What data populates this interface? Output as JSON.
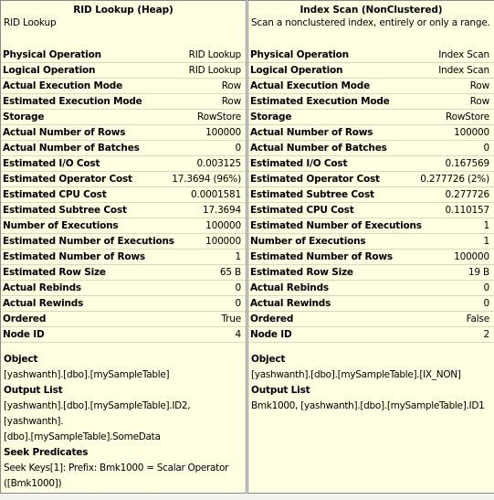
{
  "left": {
    "title": "RID Lookup (Heap)",
    "description": "RID Lookup",
    "properties": [
      {
        "label": "Physical Operation",
        "value": "RID Lookup"
      },
      {
        "label": "Logical Operation",
        "value": "RID Lookup"
      },
      {
        "label": "Actual Execution Mode",
        "value": "Row"
      },
      {
        "label": "Estimated Execution Mode",
        "value": "Row"
      },
      {
        "label": "Storage",
        "value": "RowStore"
      },
      {
        "label": "Actual Number of Rows",
        "value": "100000"
      },
      {
        "label": "Actual Number of Batches",
        "value": "0"
      },
      {
        "label": "Estimated I/O Cost",
        "value": "0.003125"
      },
      {
        "label": "Estimated Operator Cost",
        "value": "17.3694 (96%)"
      },
      {
        "label": "Estimated CPU Cost",
        "value": "0.0001581"
      },
      {
        "label": "Estimated Subtree Cost",
        "value": "17.3694"
      },
      {
        "label": "Number of Executions",
        "value": "100000"
      },
      {
        "label": "Estimated Number of Executions",
        "value": "100000"
      },
      {
        "label": "Estimated Number of Rows",
        "value": "1"
      },
      {
        "label": "Estimated Row Size",
        "value": "65 B"
      },
      {
        "label": "Actual Rebinds",
        "value": "0"
      },
      {
        "label": "Actual Rewinds",
        "value": "0"
      },
      {
        "label": "Ordered",
        "value": "True"
      },
      {
        "label": "Node ID",
        "value": "4"
      }
    ],
    "sections": [
      {
        "heading": "Object",
        "lines": [
          "[yashwanth].[dbo].[mySampleTable]"
        ]
      },
      {
        "heading": "Output List",
        "lines": [
          "[yashwanth].[dbo].[mySampleTable].ID2, [yashwanth].",
          "[dbo].[mySampleTable].SomeData"
        ]
      },
      {
        "heading": "Seek Predicates",
        "lines": [
          "Seek Keys[1]: Prefix: Bmk1000 = Scalar Operator",
          "([Bmk1000])"
        ]
      }
    ]
  },
  "right": {
    "title": "Index Scan (NonClustered)",
    "description": "Scan a nonclustered index, entirely or only a range.",
    "properties": [
      {
        "label": "Physical Operation",
        "value": "Index Scan"
      },
      {
        "label": "Logical Operation",
        "value": "Index Scan"
      },
      {
        "label": "Actual Execution Mode",
        "value": "Row"
      },
      {
        "label": "Estimated Execution Mode",
        "value": "Row"
      },
      {
        "label": "Storage",
        "value": "RowStore"
      },
      {
        "label": "Actual Number of Rows",
        "value": "100000"
      },
      {
        "label": "Actual Number of Batches",
        "value": "0"
      },
      {
        "label": "Estimated I/O Cost",
        "value": "0.167569"
      },
      {
        "label": "Estimated Operator Cost",
        "value": "0.277726 (2%)"
      },
      {
        "label": "Estimated Subtree Cost",
        "value": "0.277726"
      },
      {
        "label": "Estimated CPU Cost",
        "value": "0.110157"
      },
      {
        "label": "Estimated Number of Executions",
        "value": "1"
      },
      {
        "label": "Number of Executions",
        "value": "1"
      },
      {
        "label": "Estimated Number of Rows",
        "value": "100000"
      },
      {
        "label": "Estimated Row Size",
        "value": "19 B"
      },
      {
        "label": "Actual Rebinds",
        "value": "0"
      },
      {
        "label": "Actual Rewinds",
        "value": "0"
      },
      {
        "label": "Ordered",
        "value": "False"
      },
      {
        "label": "Node ID",
        "value": "2"
      }
    ],
    "sections": [
      {
        "heading": "Object",
        "lines": [
          "[yashwanth].[dbo].[mySampleTable].[IX_NON]"
        ]
      },
      {
        "heading": "Output List",
        "lines": [
          "Bmk1000, [yashwanth].[dbo].[mySampleTable].ID1"
        ]
      }
    ]
  }
}
